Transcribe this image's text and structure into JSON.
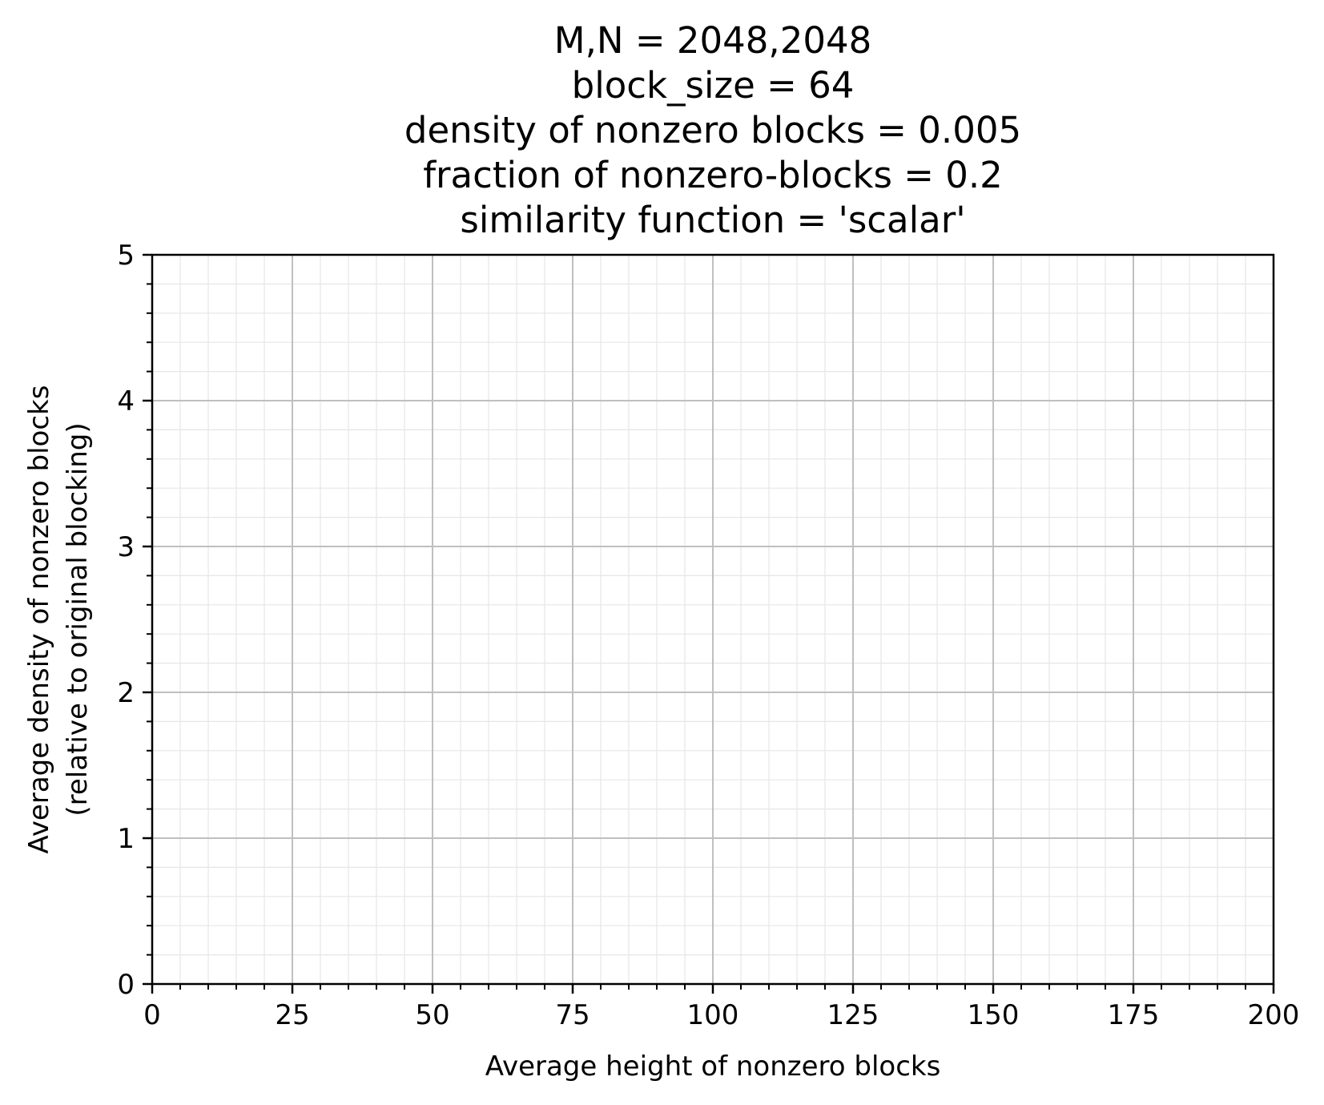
{
  "chart_data": {
    "type": "line",
    "title_lines": [
      "M,N = 2048,2048",
      "block_size = 64",
      "density of nonzero blocks = 0.005",
      "fraction of nonzero-blocks = 0.2",
      "similarity function = 'scalar'"
    ],
    "xlabel": "Average height of nonzero blocks",
    "ylabel_lines": [
      "Average density of nonzero blocks",
      "(relative to original blocking)"
    ],
    "xlim": [
      0,
      200
    ],
    "ylim": [
      0,
      5
    ],
    "x_ticks": [
      0,
      25,
      50,
      75,
      100,
      125,
      150,
      175,
      200
    ],
    "x_tick_labels": [
      "0",
      "25",
      "50",
      "75",
      "100",
      "125",
      "150",
      "175",
      "200"
    ],
    "y_ticks": [
      0,
      1,
      2,
      3,
      4,
      5
    ],
    "y_tick_labels": [
      "0",
      "1",
      "2",
      "3",
      "4",
      "5"
    ],
    "x_minor_step": 5,
    "y_minor_step": 0.2,
    "grid": "major and minor",
    "series": [],
    "colors": {
      "major_grid": "#bfbfbf",
      "minor_grid": "#e6e6e6",
      "axes": "#000000"
    }
  }
}
